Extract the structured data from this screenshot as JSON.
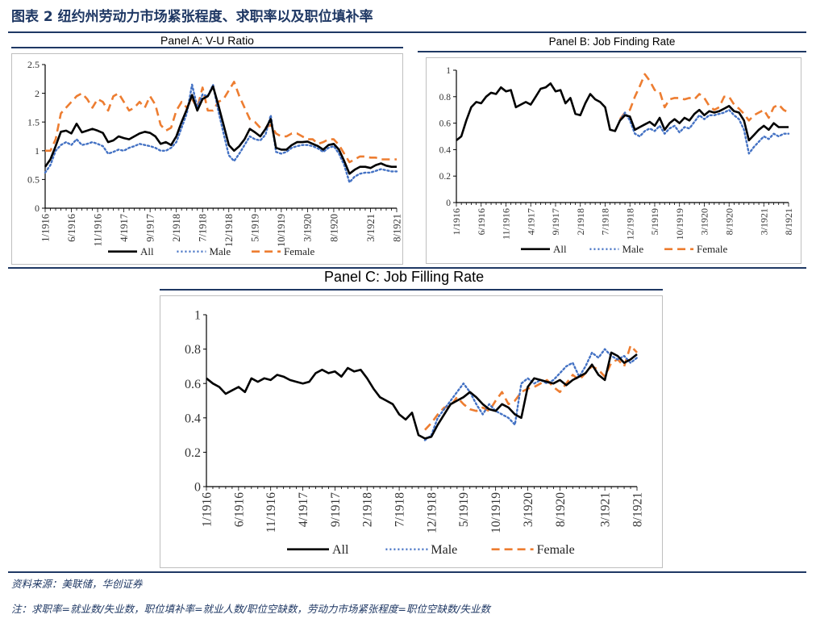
{
  "figure_title": "图表 2  纽约州劳动力市场紧张程度、求职率以及职位填补率",
  "source": "资料来源：美联储，华创证券",
  "note": "注：求职率=就业数/失业数，职位填补率=就业人数/职位空缺数，劳动力市场紧张程度=职位空缺数/失业数",
  "colors": {
    "all": "#000000",
    "male": "#4472c4",
    "female": "#ed7d31",
    "accent": "#1f3864"
  },
  "chart_data": [
    {
      "id": "panel-a",
      "type": "line",
      "title": "Panel A: V-U Ratio",
      "xlabel": "",
      "ylabel": "",
      "ylim": [
        0,
        2.5
      ],
      "yticks": [
        "0",
        "0.5",
        "1",
        "1.5",
        "2",
        "2.5"
      ],
      "xtick_labels": [
        "1/1916",
        "6/1916",
        "11/1916",
        "4/1917",
        "9/1917",
        "2/1918",
        "7/1918",
        "12/1918",
        "5/1919",
        "10/1919",
        "3/1920",
        "8/1920",
        "3/1921",
        "8/1921"
      ],
      "xtick_index": [
        0,
        5,
        10,
        15,
        20,
        25,
        30,
        35,
        40,
        45,
        50,
        55,
        62,
        67
      ],
      "n_points": 68,
      "legend_labels": [
        "All",
        "Male",
        "Female"
      ],
      "series": [
        {
          "name": "All",
          "values": [
            0.72,
            0.85,
            1.08,
            1.33,
            1.35,
            1.3,
            1.47,
            1.32,
            1.35,
            1.38,
            1.35,
            1.31,
            1.15,
            1.18,
            1.25,
            1.22,
            1.2,
            1.25,
            1.3,
            1.33,
            1.31,
            1.25,
            1.12,
            1.15,
            1.1,
            1.25,
            1.5,
            1.72,
            1.97,
            1.7,
            1.9,
            1.95,
            2.12,
            1.8,
            1.45,
            1.1,
            1.0,
            1.08,
            1.2,
            1.38,
            1.32,
            1.25,
            1.38,
            1.55,
            1.05,
            1.02,
            1.02,
            1.1,
            1.15,
            1.15,
            1.16,
            1.12,
            1.08,
            1.02,
            1.1,
            1.12,
            1.02,
            0.82,
            0.6,
            0.67,
            0.72,
            0.72,
            0.7,
            0.75,
            0.78,
            0.74,
            0.72,
            0.72
          ]
        },
        {
          "name": "Male",
          "values": [
            0.62,
            0.75,
            1.0,
            1.1,
            1.15,
            1.1,
            1.2,
            1.1,
            1.12,
            1.15,
            1.12,
            1.08,
            0.95,
            0.98,
            1.02,
            1.0,
            1.05,
            1.08,
            1.12,
            1.1,
            1.08,
            1.05,
            1.0,
            1.0,
            1.05,
            1.15,
            1.4,
            1.65,
            2.15,
            1.75,
            1.98,
            1.95,
            2.15,
            1.7,
            1.3,
            0.92,
            0.82,
            0.95,
            1.1,
            1.25,
            1.2,
            1.18,
            1.28,
            1.62,
            0.98,
            0.95,
            0.98,
            1.05,
            1.08,
            1.1,
            1.1,
            1.08,
            1.04,
            0.98,
            1.05,
            1.08,
            0.95,
            0.75,
            0.45,
            0.55,
            0.6,
            0.62,
            0.62,
            0.65,
            0.68,
            0.66,
            0.64,
            0.64
          ]
        },
        {
          "name": "Female",
          "values": [
            1.0,
            1.0,
            1.2,
            1.65,
            1.75,
            1.85,
            1.95,
            2.0,
            1.9,
            1.75,
            1.9,
            1.85,
            1.7,
            1.95,
            2.0,
            1.85,
            1.7,
            1.75,
            1.85,
            1.75,
            1.95,
            1.8,
            1.45,
            1.35,
            1.4,
            1.7,
            1.85,
            1.75,
            1.9,
            1.75,
            2.1,
            1.7,
            1.7,
            1.85,
            1.9,
            2.05,
            2.2,
            1.95,
            1.75,
            1.55,
            1.5,
            1.4,
            1.4,
            1.45,
            1.3,
            1.25,
            1.25,
            1.3,
            1.3,
            1.25,
            1.2,
            1.2,
            1.12,
            1.15,
            1.2,
            1.2,
            1.1,
            0.95,
            0.8,
            0.85,
            0.9,
            0.9,
            0.88,
            0.88,
            0.85,
            0.85,
            0.85,
            0.85
          ]
        }
      ]
    },
    {
      "id": "panel-b",
      "type": "line",
      "title": "Panel B: Job Finding Rate",
      "xlabel": "",
      "ylabel": "",
      "ylim": [
        0,
        1
      ],
      "yticks": [
        "0",
        "0.2",
        "0.4",
        "0.6",
        "0.8",
        "1"
      ],
      "xtick_labels": [
        "1/1916",
        "6/1916",
        "11/1916",
        "4/1917",
        "9/1917",
        "2/1918",
        "7/1918",
        "12/1918",
        "5/1919",
        "10/1919",
        "3/1920",
        "8/1920",
        "3/1921",
        "8/1921"
      ],
      "xtick_index": [
        0,
        5,
        10,
        15,
        20,
        25,
        30,
        35,
        40,
        45,
        50,
        55,
        62,
        67
      ],
      "n_points": 68,
      "legend_labels": [
        "All",
        "Male",
        "Female"
      ],
      "series": [
        {
          "name": "All",
          "values": [
            0.47,
            0.5,
            0.62,
            0.72,
            0.76,
            0.75,
            0.8,
            0.83,
            0.82,
            0.87,
            0.84,
            0.85,
            0.72,
            0.74,
            0.76,
            0.74,
            0.8,
            0.86,
            0.87,
            0.9,
            0.84,
            0.85,
            0.75,
            0.79,
            0.67,
            0.66,
            0.75,
            0.82,
            0.78,
            0.76,
            0.72,
            0.55,
            0.54,
            0.62,
            0.66,
            0.65,
            0.55,
            0.57,
            0.59,
            0.61,
            0.58,
            0.64,
            0.55,
            0.6,
            0.63,
            0.6,
            0.64,
            0.62,
            0.67,
            0.7,
            0.66,
            0.69,
            0.68,
            0.69,
            0.71,
            0.73,
            0.69,
            0.68,
            0.62,
            0.47,
            0.51,
            0.55,
            0.58,
            0.55,
            0.6,
            0.57,
            0.57,
            0.57
          ]
        },
        {
          "name": "Male",
          "values": [
            null,
            null,
            null,
            null,
            null,
            null,
            null,
            null,
            null,
            null,
            null,
            null,
            null,
            null,
            null,
            null,
            null,
            null,
            null,
            null,
            null,
            null,
            null,
            null,
            null,
            null,
            null,
            null,
            null,
            null,
            null,
            null,
            null,
            0.62,
            0.68,
            0.62,
            0.52,
            0.5,
            0.54,
            0.56,
            0.54,
            0.58,
            0.52,
            0.56,
            0.58,
            0.53,
            0.57,
            0.56,
            0.61,
            0.66,
            0.63,
            0.66,
            0.66,
            0.67,
            0.68,
            0.7,
            0.66,
            0.63,
            0.55,
            0.37,
            0.42,
            0.46,
            0.5,
            0.48,
            0.52,
            0.5,
            0.52,
            0.52
          ]
        },
        {
          "name": "Female",
          "values": [
            null,
            null,
            null,
            null,
            null,
            null,
            null,
            null,
            null,
            null,
            null,
            null,
            null,
            null,
            null,
            null,
            null,
            null,
            null,
            null,
            null,
            null,
            null,
            null,
            null,
            null,
            null,
            null,
            null,
            null,
            null,
            null,
            null,
            0.63,
            0.68,
            0.7,
            0.8,
            0.88,
            0.97,
            0.92,
            0.85,
            0.84,
            0.72,
            0.78,
            0.79,
            0.79,
            0.78,
            0.79,
            0.78,
            0.82,
            0.79,
            0.73,
            0.7,
            0.72,
            0.8,
            0.8,
            0.74,
            0.71,
            0.67,
            0.62,
            0.66,
            0.68,
            0.7,
            0.64,
            0.72,
            0.74,
            0.7,
            0.68
          ]
        }
      ]
    },
    {
      "id": "panel-c",
      "type": "line",
      "title": "Panel C: Job Filling Rate",
      "xlabel": "",
      "ylabel": "",
      "ylim": [
        0,
        1
      ],
      "yticks": [
        "0",
        "0.2",
        "0.4",
        "0.6",
        "0.8",
        "1"
      ],
      "xtick_labels": [
        "1/1916",
        "6/1916",
        "11/1916",
        "4/1917",
        "9/1917",
        "2/1918",
        "7/1918",
        "12/1918",
        "5/1919",
        "10/1919",
        "3/1920",
        "8/1920",
        "3/1921",
        "8/1921"
      ],
      "xtick_index": [
        0,
        5,
        10,
        15,
        20,
        25,
        30,
        35,
        40,
        45,
        50,
        55,
        62,
        67
      ],
      "n_points": 68,
      "legend_labels": [
        "All",
        "Male",
        "Female"
      ],
      "series": [
        {
          "name": "All",
          "values": [
            0.63,
            0.6,
            0.58,
            0.54,
            0.56,
            0.58,
            0.55,
            0.63,
            0.61,
            0.63,
            0.62,
            0.65,
            0.64,
            0.62,
            0.61,
            0.6,
            0.61,
            0.66,
            0.68,
            0.66,
            0.67,
            0.64,
            0.69,
            0.67,
            0.68,
            0.63,
            0.57,
            0.52,
            0.5,
            0.48,
            0.42,
            0.39,
            0.43,
            0.3,
            0.28,
            0.29,
            0.36,
            0.42,
            0.48,
            0.5,
            0.52,
            0.55,
            0.52,
            0.48,
            0.45,
            0.44,
            0.48,
            0.46,
            0.42,
            0.4,
            0.58,
            0.63,
            0.62,
            0.61,
            0.6,
            0.62,
            0.59,
            0.62,
            0.64,
            0.66,
            0.71,
            0.65,
            0.62,
            0.78,
            0.76,
            0.72,
            0.74,
            0.77
          ]
        },
        {
          "name": "Male",
          "values": [
            null,
            null,
            null,
            null,
            null,
            null,
            null,
            null,
            null,
            null,
            null,
            null,
            null,
            null,
            null,
            null,
            null,
            null,
            null,
            null,
            null,
            null,
            null,
            null,
            null,
            null,
            null,
            null,
            null,
            null,
            null,
            null,
            null,
            null,
            0.27,
            0.3,
            0.4,
            0.45,
            0.5,
            0.55,
            0.6,
            0.55,
            0.48,
            0.42,
            0.48,
            0.44,
            0.42,
            0.4,
            0.36,
            0.6,
            0.63,
            0.6,
            0.62,
            0.6,
            0.62,
            0.66,
            0.7,
            0.72,
            0.64,
            0.7,
            0.78,
            0.75,
            0.8,
            0.76,
            0.74,
            0.76,
            0.72,
            0.75
          ]
        },
        {
          "name": "Female",
          "values": [
            null,
            null,
            null,
            null,
            null,
            null,
            null,
            null,
            null,
            null,
            null,
            null,
            null,
            null,
            null,
            null,
            null,
            null,
            null,
            null,
            null,
            null,
            null,
            null,
            null,
            null,
            null,
            null,
            null,
            null,
            null,
            null,
            null,
            null,
            0.33,
            0.37,
            0.42,
            0.46,
            0.47,
            0.52,
            0.48,
            0.45,
            0.44,
            0.46,
            0.44,
            0.5,
            0.55,
            0.48,
            0.5,
            0.55,
            0.57,
            0.58,
            0.6,
            0.62,
            0.58,
            0.55,
            0.6,
            0.65,
            0.62,
            0.66,
            0.7,
            0.68,
            0.64,
            0.72,
            0.74,
            0.7,
            0.82,
            0.78
          ]
        }
      ]
    }
  ]
}
